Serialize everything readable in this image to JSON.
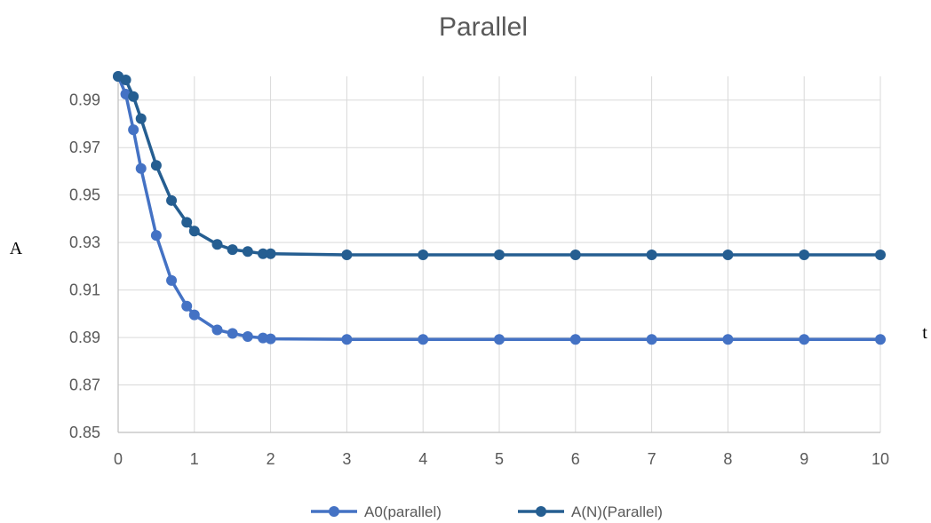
{
  "chart_data": {
    "type": "line",
    "title": "Parallel",
    "xlabel": "t",
    "ylabel": "A",
    "xlim": [
      0,
      10
    ],
    "ylim": [
      0.85,
      1.0
    ],
    "x_ticks": [
      "0",
      "1",
      "2",
      "3",
      "4",
      "5",
      "6",
      "7",
      "8",
      "9",
      "10"
    ],
    "y_ticks": [
      "0.85",
      "0.87",
      "0.89",
      "0.91",
      "0.93",
      "0.95",
      "0.97",
      "0.99"
    ],
    "grid": true,
    "legend_position": "bottom",
    "series": [
      {
        "name": "A0(parallel)",
        "color": "#4472c4",
        "points": [
          [
            0,
            1.0
          ],
          [
            0.1,
            0.9925
          ],
          [
            0.2,
            0.9775
          ],
          [
            0.3,
            0.9612
          ],
          [
            0.5,
            0.933
          ],
          [
            0.7,
            0.914
          ],
          [
            0.9,
            0.9032
          ],
          [
            1.0,
            0.8995
          ],
          [
            1.3,
            0.8932
          ],
          [
            1.5,
            0.8917
          ],
          [
            1.7,
            0.8904
          ],
          [
            1.9,
            0.8898
          ],
          [
            2.0,
            0.8894
          ],
          [
            3,
            0.8892
          ],
          [
            4,
            0.8892
          ],
          [
            5,
            0.8892
          ],
          [
            6,
            0.8892
          ],
          [
            7,
            0.8892
          ],
          [
            8,
            0.8892
          ],
          [
            9,
            0.8892
          ],
          [
            10,
            0.8892
          ]
        ]
      },
      {
        "name": "A(N)(Parallel)",
        "color": "#255e91",
        "points": [
          [
            0,
            1.0
          ],
          [
            0.1,
            0.9985
          ],
          [
            0.2,
            0.9915
          ],
          [
            0.3,
            0.9822
          ],
          [
            0.5,
            0.9625
          ],
          [
            0.7,
            0.9477
          ],
          [
            0.9,
            0.9385
          ],
          [
            1.0,
            0.9348
          ],
          [
            1.3,
            0.9292
          ],
          [
            1.5,
            0.927
          ],
          [
            1.7,
            0.9262
          ],
          [
            1.9,
            0.9253
          ],
          [
            2.0,
            0.9253
          ],
          [
            3,
            0.9248
          ],
          [
            4,
            0.9248
          ],
          [
            5,
            0.9248
          ],
          [
            6,
            0.9248
          ],
          [
            7,
            0.9248
          ],
          [
            8,
            0.9248
          ],
          [
            9,
            0.9248
          ],
          [
            10,
            0.9248
          ]
        ]
      }
    ]
  }
}
